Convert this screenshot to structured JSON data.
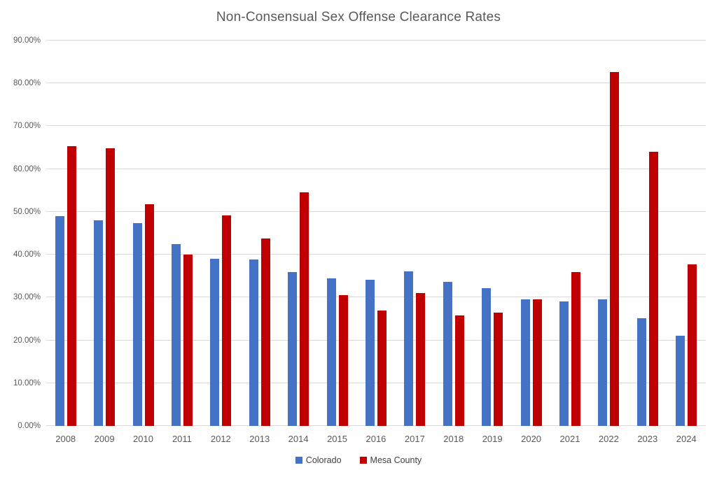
{
  "chart_data": {
    "type": "bar",
    "title": "Non-Consensual Sex Offense Clearance Rates",
    "xlabel": "",
    "ylabel": "",
    "ylim": [
      0,
      90
    ],
    "grid": true,
    "legend_position": "bottom-center",
    "y_ticks": [
      {
        "value": 0,
        "label": "0.00%"
      },
      {
        "value": 10,
        "label": "10.00%"
      },
      {
        "value": 20,
        "label": "20.00%"
      },
      {
        "value": 30,
        "label": "30.00%"
      },
      {
        "value": 40,
        "label": "40.00%"
      },
      {
        "value": 50,
        "label": "50.00%"
      },
      {
        "value": 60,
        "label": "60.00%"
      },
      {
        "value": 70,
        "label": "70.00%"
      },
      {
        "value": 80,
        "label": "80.00%"
      },
      {
        "value": 90,
        "label": "90.00%"
      }
    ],
    "categories": [
      "2008",
      "2009",
      "2010",
      "2011",
      "2012",
      "2013",
      "2014",
      "2015",
      "2016",
      "2017",
      "2018",
      "2019",
      "2020",
      "2021",
      "2022",
      "2023",
      "2024"
    ],
    "series": [
      {
        "name": "Colorado",
        "color": "#4472C4",
        "values": [
          49.0,
          48.1,
          47.3,
          42.5,
          39.1,
          38.8,
          35.9,
          34.5,
          34.1,
          36.1,
          33.6,
          32.2,
          29.5,
          29.0,
          29.5,
          25.2,
          21.0
        ]
      },
      {
        "name": "Mesa County",
        "color": "#C00000",
        "values": [
          65.4,
          64.8,
          51.7,
          40.0,
          49.1,
          43.8,
          54.6,
          30.6,
          27.0,
          31.0,
          25.8,
          26.4,
          29.5,
          35.9,
          82.7,
          64.0,
          37.8
        ]
      }
    ],
    "colors": {
      "gridline": "#D9D9D9",
      "title_text": "#595959",
      "axis_text": "#595959"
    }
  }
}
